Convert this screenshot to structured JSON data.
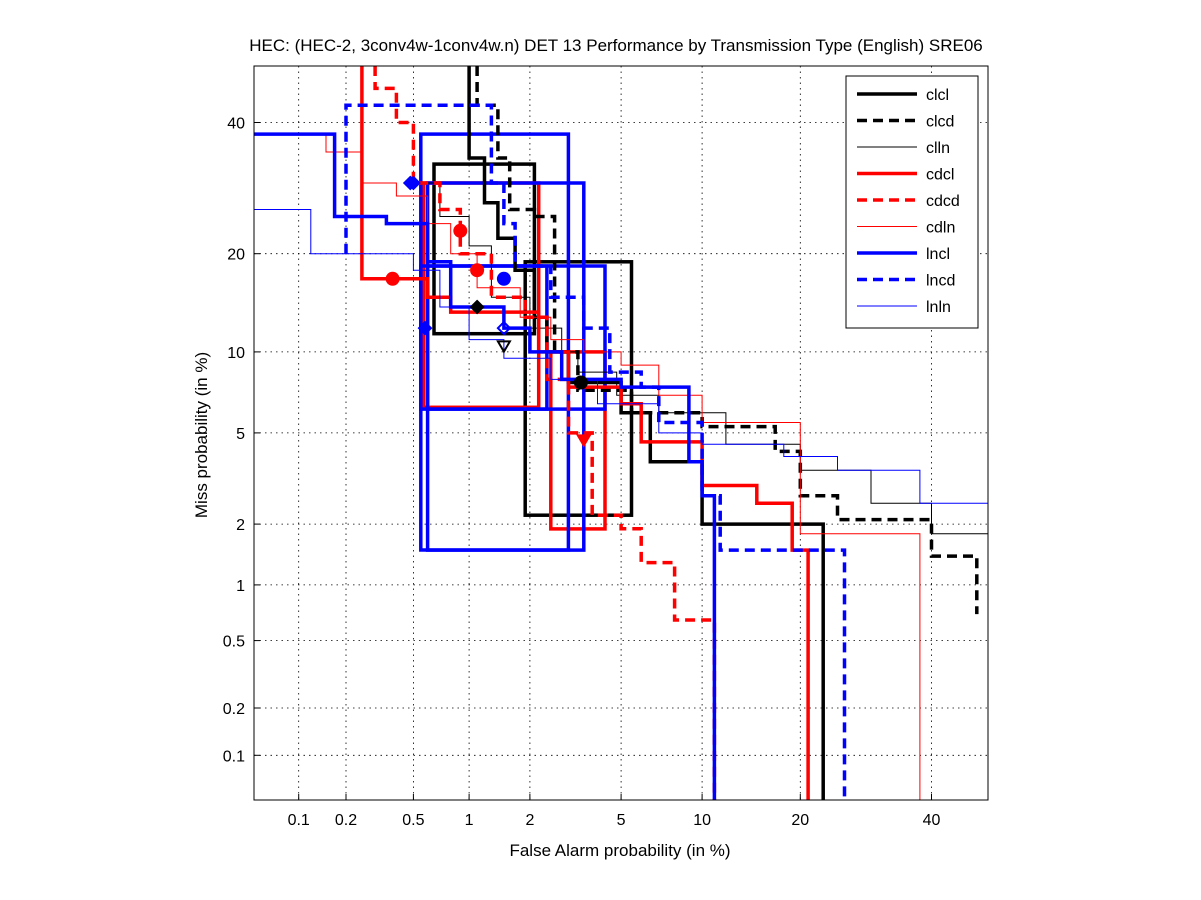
{
  "chart_data": {
    "type": "line",
    "title": "HEC: (HEC-2, 3conv4w-1conv4w.n) DET 13 Performance by Transmission Type (English) SRE06",
    "xlabel": "False Alarm probability (in %)",
    "ylabel": "Miss probability (in %)",
    "xscale": "probit",
    "yscale": "probit",
    "xlim": [
      0.05,
      50
    ],
    "ylim": [
      0.05,
      50
    ],
    "grid": true,
    "legend_position": "top-right",
    "x_ticks": [
      {
        "value": 0.1,
        "label": "0.1"
      },
      {
        "value": 0.2,
        "label": "0.2"
      },
      {
        "value": 0.5,
        "label": "0.5"
      },
      {
        "value": 1,
        "label": "1"
      },
      {
        "value": 2,
        "label": "2"
      },
      {
        "value": 5,
        "label": "5"
      },
      {
        "value": 10,
        "label": "10"
      },
      {
        "value": 20,
        "label": "20"
      },
      {
        "value": 40,
        "label": "40"
      }
    ],
    "y_ticks": [
      {
        "value": 0.1,
        "label": "0.1"
      },
      {
        "value": 0.2,
        "label": "0.2"
      },
      {
        "value": 0.5,
        "label": "0.5"
      },
      {
        "value": 1,
        "label": "1"
      },
      {
        "value": 2,
        "label": "2"
      },
      {
        "value": 5,
        "label": "5"
      },
      {
        "value": 10,
        "label": "10"
      },
      {
        "value": 20,
        "label": "20"
      },
      {
        "value": 40,
        "label": "40"
      }
    ],
    "series": [
      {
        "name": "clcl",
        "color": "#000000",
        "style": "solid",
        "weight": "thick",
        "points": [
          [
            1.0,
            50
          ],
          [
            1.0,
            34
          ],
          [
            1.2,
            34
          ],
          [
            1.2,
            27
          ],
          [
            1.4,
            27
          ],
          [
            1.4,
            22
          ],
          [
            1.7,
            22
          ],
          [
            1.7,
            18
          ],
          [
            2.1,
            18
          ],
          [
            2.1,
            13
          ],
          [
            2.4,
            13
          ],
          [
            2.4,
            10
          ],
          [
            3.0,
            10
          ],
          [
            3.0,
            7.8
          ],
          [
            5.0,
            7.8
          ],
          [
            5.0,
            6.0
          ],
          [
            6.5,
            6.0
          ],
          [
            6.5,
            3.8
          ],
          [
            10.0,
            3.8
          ],
          [
            10.0,
            2.0
          ],
          [
            23.0,
            2.0
          ],
          [
            23.0,
            0.05
          ]
        ],
        "marker": {
          "x": 3.4,
          "y": 7.8,
          "shape": "circle"
        },
        "confidence_box": {
          "x": [
            1.9,
            5.5
          ],
          "y": [
            2.2,
            19
          ]
        },
        "min_marker": {
          "x": 1.1,
          "y": 14,
          "shape": "diamond"
        },
        "min_box": {
          "x": [
            0.65,
            2.1
          ],
          "y": [
            11.5,
            33
          ]
        }
      },
      {
        "name": "clcd",
        "color": "#000000",
        "style": "dashed",
        "weight": "thick",
        "points": [
          [
            1.1,
            50
          ],
          [
            1.1,
            43
          ],
          [
            1.4,
            43
          ],
          [
            1.4,
            34
          ],
          [
            1.6,
            34
          ],
          [
            1.6,
            26
          ],
          [
            2.1,
            26
          ],
          [
            2.1,
            25
          ],
          [
            2.6,
            25
          ],
          [
            2.6,
            10
          ],
          [
            3.3,
            10
          ],
          [
            3.3,
            7.3
          ],
          [
            5.5,
            7.3
          ],
          [
            5.5,
            6.0
          ],
          [
            10.0,
            6.0
          ],
          [
            10.0,
            5.3
          ],
          [
            17.0,
            5.3
          ],
          [
            17.0,
            4.2
          ],
          [
            20.0,
            4.2
          ],
          [
            20.0,
            2.7
          ],
          [
            25.0,
            2.7
          ],
          [
            25.0,
            2.1
          ],
          [
            40.0,
            2.1
          ],
          [
            40.0,
            1.4
          ],
          [
            48.0,
            1.4
          ],
          [
            48.0,
            0.7
          ]
        ]
      },
      {
        "name": "clln",
        "color": "#000000",
        "style": "solid",
        "weight": "thin",
        "points": [
          [
            0.5,
            30
          ],
          [
            0.7,
            30
          ],
          [
            0.7,
            25
          ],
          [
            1.0,
            25
          ],
          [
            1.0,
            21
          ],
          [
            1.3,
            21
          ],
          [
            1.3,
            15
          ],
          [
            2.0,
            15
          ],
          [
            2.0,
            12
          ],
          [
            2.8,
            12
          ],
          [
            2.8,
            10
          ],
          [
            3.3,
            10
          ],
          [
            3.3,
            8.5
          ],
          [
            4.8,
            8.5
          ],
          [
            4.8,
            7.0
          ],
          [
            7.0,
            7.0
          ],
          [
            7.0,
            6.0
          ],
          [
            12.0,
            6.0
          ],
          [
            12.0,
            4.5
          ],
          [
            20.0,
            4.5
          ],
          [
            20.0,
            3.5
          ],
          [
            30.0,
            3.5
          ],
          [
            30.0,
            2.5
          ],
          [
            40.0,
            2.5
          ],
          [
            40.0,
            1.8
          ],
          [
            50.0,
            1.8
          ]
        ],
        "min_marker": {
          "x": 1.5,
          "y": 10.5,
          "shape": "triangle-down"
        }
      },
      {
        "name": "cdcl",
        "color": "#ff0000",
        "style": "solid",
        "weight": "thick",
        "points": [
          [
            0.25,
            50
          ],
          [
            0.25,
            17
          ],
          [
            0.6,
            17
          ],
          [
            0.6,
            15
          ],
          [
            0.8,
            15
          ],
          [
            0.8,
            13.5
          ],
          [
            2.2,
            13.5
          ],
          [
            2.2,
            10
          ],
          [
            3.0,
            10
          ],
          [
            3.0,
            7.5
          ],
          [
            5.0,
            7.5
          ],
          [
            5.0,
            6.5
          ],
          [
            6.0,
            6.5
          ],
          [
            6.0,
            4.6
          ],
          [
            10.0,
            4.6
          ],
          [
            10.0,
            3.0
          ],
          [
            15.0,
            3.0
          ],
          [
            15.0,
            2.5
          ],
          [
            19.0,
            2.5
          ],
          [
            19.0,
            1.5
          ],
          [
            21.0,
            1.5
          ],
          [
            21.0,
            0.05
          ]
        ],
        "marker": {
          "x": 0.38,
          "y": 17,
          "shape": "circle"
        },
        "confidence_box": {
          "x": [
            0.57,
            2.2
          ],
          "y": [
            6.3,
            30
          ]
        },
        "min_marker": {
          "x": 1.1,
          "y": 18,
          "shape": "circle"
        }
      },
      {
        "name": "cdcd",
        "color": "#ff0000",
        "style": "dashed",
        "weight": "thick",
        "points": [
          [
            0.3,
            50
          ],
          [
            0.3,
            46
          ],
          [
            0.4,
            46
          ],
          [
            0.4,
            40
          ],
          [
            0.5,
            40
          ],
          [
            0.5,
            30
          ],
          [
            0.7,
            30
          ],
          [
            0.7,
            26
          ],
          [
            0.9,
            26
          ],
          [
            0.9,
            20
          ],
          [
            1.3,
            20
          ],
          [
            1.3,
            15
          ],
          [
            1.9,
            15
          ],
          [
            1.9,
            13
          ],
          [
            2.4,
            13
          ],
          [
            2.4,
            8.0
          ],
          [
            3.0,
            8.0
          ],
          [
            3.0,
            5.0
          ],
          [
            3.8,
            5.0
          ],
          [
            3.8,
            2.2
          ],
          [
            5.0,
            2.2
          ],
          [
            5.0,
            1.9
          ],
          [
            6.0,
            1.9
          ],
          [
            6.0,
            1.3
          ],
          [
            8.0,
            1.3
          ],
          [
            8.0,
            0.65
          ],
          [
            11.0,
            0.65
          ],
          [
            11.0,
            0.05
          ]
        ],
        "marker": {
          "x": 3.5,
          "y": 4.7,
          "shape": "triangle-down"
        },
        "confidence_box": {
          "x": [
            2.5,
            4.3
          ],
          "y": [
            1.9,
            10
          ]
        },
        "min_marker": {
          "x": 0.9,
          "y": 23,
          "shape": "circle"
        }
      },
      {
        "name": "cdln",
        "color": "#ff0000",
        "style": "solid",
        "weight": "thin",
        "points": [
          [
            0.05,
            38
          ],
          [
            0.15,
            38
          ],
          [
            0.15,
            35
          ],
          [
            0.25,
            35
          ],
          [
            0.25,
            30
          ],
          [
            0.4,
            30
          ],
          [
            0.4,
            28
          ],
          [
            0.6,
            28
          ],
          [
            0.6,
            24
          ],
          [
            0.8,
            24
          ],
          [
            0.8,
            20
          ],
          [
            1.1,
            20
          ],
          [
            1.1,
            16
          ],
          [
            1.8,
            16
          ],
          [
            1.8,
            13
          ],
          [
            2.5,
            13
          ],
          [
            2.5,
            11
          ],
          [
            3.5,
            11
          ],
          [
            3.5,
            10
          ],
          [
            5.0,
            10
          ],
          [
            5.0,
            9.0
          ],
          [
            7.0,
            9.0
          ],
          [
            7.0,
            7.0
          ],
          [
            10.0,
            7.0
          ],
          [
            10.0,
            5.5
          ],
          [
            20.0,
            5.5
          ],
          [
            20.0,
            1.8
          ],
          [
            38.0,
            1.8
          ],
          [
            38.0,
            0.05
          ]
        ]
      },
      {
        "name": "lncl",
        "color": "#0000ff",
        "style": "solid",
        "weight": "thick",
        "points": [
          [
            0.05,
            38
          ],
          [
            0.17,
            38
          ],
          [
            0.17,
            25
          ],
          [
            0.35,
            25
          ],
          [
            0.35,
            24
          ],
          [
            0.6,
            24
          ],
          [
            0.6,
            19
          ],
          [
            0.8,
            19
          ],
          [
            0.8,
            14
          ],
          [
            1.5,
            14
          ],
          [
            1.5,
            12
          ],
          [
            2.0,
            12
          ],
          [
            2.0,
            10
          ],
          [
            2.8,
            10
          ],
          [
            2.8,
            8.0
          ],
          [
            5.0,
            8.0
          ],
          [
            5.0,
            7.5
          ],
          [
            9.0,
            7.5
          ],
          [
            9.0,
            3.8
          ],
          [
            10.0,
            3.8
          ],
          [
            10.0,
            2.7
          ],
          [
            11.0,
            2.7
          ],
          [
            11.0,
            0.05
          ]
        ],
        "marker": {
          "x": 0.5,
          "y": 30,
          "shape": "diamond"
        },
        "confidence_box": {
          "x": [
            0.55,
            3.0
          ],
          "y": [
            1.5,
            38
          ]
        },
        "min_marker": {
          "x": 0.58,
          "y": 12,
          "shape": "diamond"
        },
        "min_box": {
          "x": [
            0.6,
            2.4
          ],
          "y": [
            6.2,
            18.5
          ]
        }
      },
      {
        "name": "lncd",
        "color": "#0000ff",
        "style": "dashed",
        "weight": "thick",
        "points": [
          [
            0.2,
            20
          ],
          [
            0.2,
            43
          ],
          [
            0.8,
            43
          ],
          [
            0.8,
            43
          ],
          [
            1.3,
            43
          ],
          [
            1.3,
            30
          ],
          [
            1.5,
            30
          ],
          [
            1.5,
            24
          ],
          [
            1.7,
            24
          ],
          [
            1.7,
            18.5
          ],
          [
            2.5,
            18.5
          ],
          [
            2.5,
            15
          ],
          [
            3.5,
            15
          ],
          [
            3.5,
            12
          ],
          [
            4.5,
            12
          ],
          [
            4.5,
            8.5
          ],
          [
            6.0,
            8.5
          ],
          [
            6.0,
            7.5
          ],
          [
            7.0,
            7.5
          ],
          [
            7.0,
            5.5
          ],
          [
            10.0,
            5.5
          ],
          [
            10.0,
            2.7
          ],
          [
            11.5,
            2.7
          ],
          [
            11.5,
            1.5
          ],
          [
            26.0,
            1.5
          ],
          [
            26.0,
            0.05
          ]
        ],
        "marker": {
          "x": 0.48,
          "y": 30,
          "shape": "diamond"
        },
        "confidence_box": {
          "x": [
            0.6,
            3.5
          ],
          "y": [
            1.5,
            30
          ]
        },
        "min_marker": {
          "x": 1.5,
          "y": 17,
          "shape": "circle"
        },
        "min_box": {
          "x": [
            0.55,
            4.3
          ],
          "y": [
            6.2,
            18.5
          ]
        }
      },
      {
        "name": "lnln",
        "color": "#0000ff",
        "style": "solid",
        "weight": "thin",
        "points": [
          [
            0.05,
            26
          ],
          [
            0.12,
            26
          ],
          [
            0.12,
            20
          ],
          [
            0.5,
            20
          ],
          [
            0.5,
            18
          ],
          [
            0.7,
            18
          ],
          [
            0.7,
            14
          ],
          [
            1.0,
            14
          ],
          [
            1.0,
            11
          ],
          [
            1.5,
            11
          ],
          [
            1.5,
            9.5
          ],
          [
            2.5,
            9.5
          ],
          [
            2.5,
            8.0
          ],
          [
            4.0,
            8.0
          ],
          [
            4.0,
            6.5
          ],
          [
            7.0,
            6.5
          ],
          [
            7.0,
            5.0
          ],
          [
            10.0,
            5.0
          ],
          [
            10.0,
            4.5
          ],
          [
            18.0,
            4.5
          ],
          [
            18.0,
            4.0
          ],
          [
            25.0,
            4.0
          ],
          [
            25.0,
            3.5
          ],
          [
            38.0,
            3.5
          ],
          [
            38.0,
            2.5
          ],
          [
            50.0,
            2.5
          ]
        ],
        "min_marker": {
          "x": 1.5,
          "y": 12,
          "shape": "diamond"
        }
      }
    ]
  }
}
